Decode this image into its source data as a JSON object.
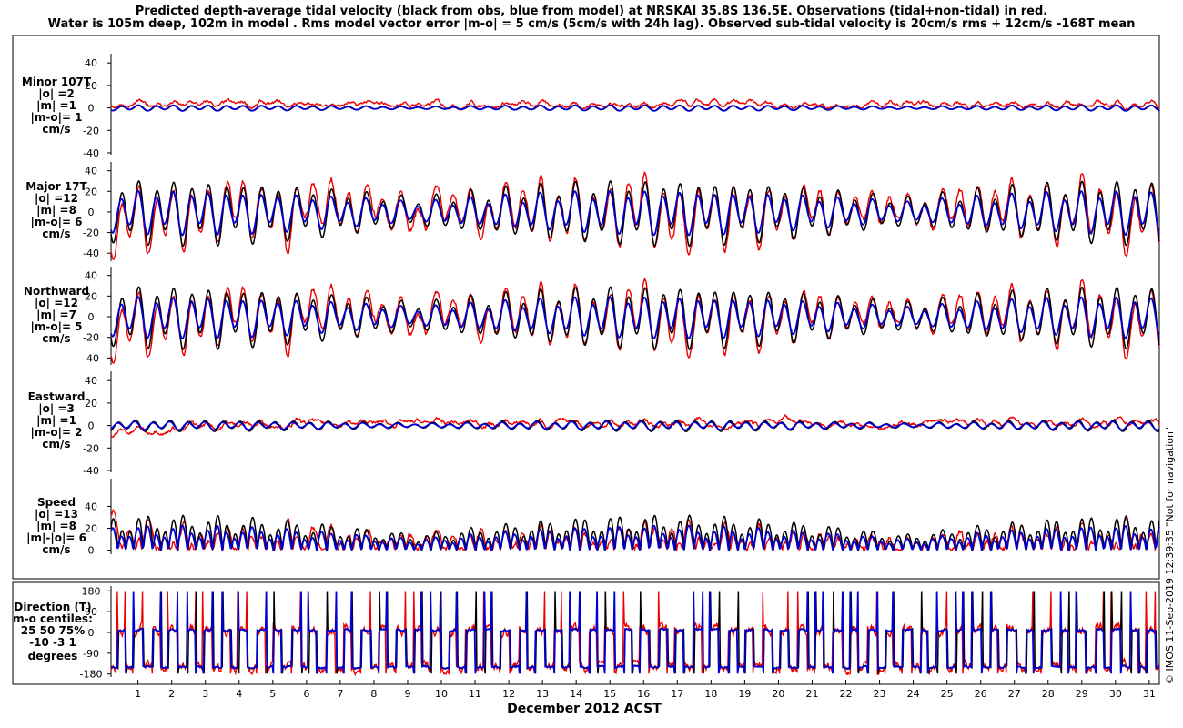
{
  "chart_data": {
    "type": "line",
    "title": [
      "Predicted depth-average tidal velocity (black from obs, blue from model) at NRSKAI 35.8S 136.5E. Observations (tidal+non-tidal) in red.",
      "Water is 105m deep, 102m in model . Rms model vector error |m-o| = 5 cm/s (5cm/s with 24h lag). Observed sub-tidal velocity is 20cm/s rms + 12cm/s -168T mean"
    ],
    "xlabel": "December 2012 ACST",
    "x_ticks": [
      "1",
      "2",
      "3",
      "4",
      "5",
      "6",
      "7",
      "8",
      "9",
      "10",
      "11",
      "12",
      "13",
      "14",
      "15",
      "16",
      "17",
      "18",
      "19",
      "20",
      "21",
      "22",
      "23",
      "24",
      "25",
      "26",
      "27",
      "28",
      "29",
      "30",
      "31"
    ],
    "xlim": [
      0.2,
      31.3
    ],
    "watermark": "© IMOS 11-Sep-2019 12:39:35  \"Not for navigation\"",
    "legend": {
      "obs_tidal": "black",
      "model": "blue",
      "observations": "red"
    },
    "colors": {
      "obs": "#000000",
      "model": "#0000d0",
      "observed_total": "#ee0000"
    },
    "panels": [
      {
        "name": "minor",
        "label": [
          "Minor 107T",
          "|o| =2",
          "|m| =1",
          "|m-o|= 1",
          "cm/s"
        ],
        "yticks": [
          40,
          20,
          0,
          -20,
          -40
        ],
        "ylim": [
          -40,
          45
        ],
        "series_amplitude_cms": {
          "black": 2,
          "blue": 2,
          "red_noise": 6
        }
      },
      {
        "name": "major",
        "label": [
          "Major 17T",
          "|o| =12",
          "|m| =8",
          "|m-o|= 6",
          "cm/s"
        ],
        "yticks": [
          40,
          20,
          0,
          -20,
          -40
        ],
        "ylim": [
          -46,
          45
        ],
        "series_amplitude_cms": {
          "black": 25,
          "blue": 17,
          "red_noise": 15
        }
      },
      {
        "name": "northward",
        "label": [
          "Northward",
          "|o| =12",
          "|m| =7",
          "|m-o|= 5",
          "cm/s"
        ],
        "yticks": [
          40,
          20,
          0,
          -20,
          -40
        ],
        "ylim": [
          -45,
          45
        ],
        "series_amplitude_cms": {
          "black": 24,
          "blue": 16,
          "red_noise": 15
        }
      },
      {
        "name": "eastward",
        "label": [
          "Eastward",
          "|o| =3",
          "|m| =1",
          "|m-o|= 2",
          "cm/s"
        ],
        "yticks": [
          40,
          20,
          0,
          -20,
          -40
        ],
        "ylim": [
          -40,
          45
        ],
        "series_amplitude_cms": {
          "black": 4,
          "blue": 3,
          "red_noise": 8
        }
      },
      {
        "name": "speed",
        "label": [
          "Speed",
          "|o| =13",
          "|m| =8",
          "|m|-|o|= 6",
          "cm/s"
        ],
        "yticks": [
          40,
          20,
          0
        ],
        "ylim": [
          -2,
          62
        ],
        "series_amplitude_cms": {
          "black": 24,
          "blue": 17,
          "red_noise": 15
        }
      },
      {
        "name": "direction",
        "label": [
          "Direction (T)",
          "m-o centiles:",
          "25  50  75%",
          "-10  -3   1",
          "degrees"
        ],
        "yticks": [
          180,
          90,
          0,
          -90,
          -180
        ],
        "ylim": [
          -185,
          185
        ]
      }
    ]
  }
}
